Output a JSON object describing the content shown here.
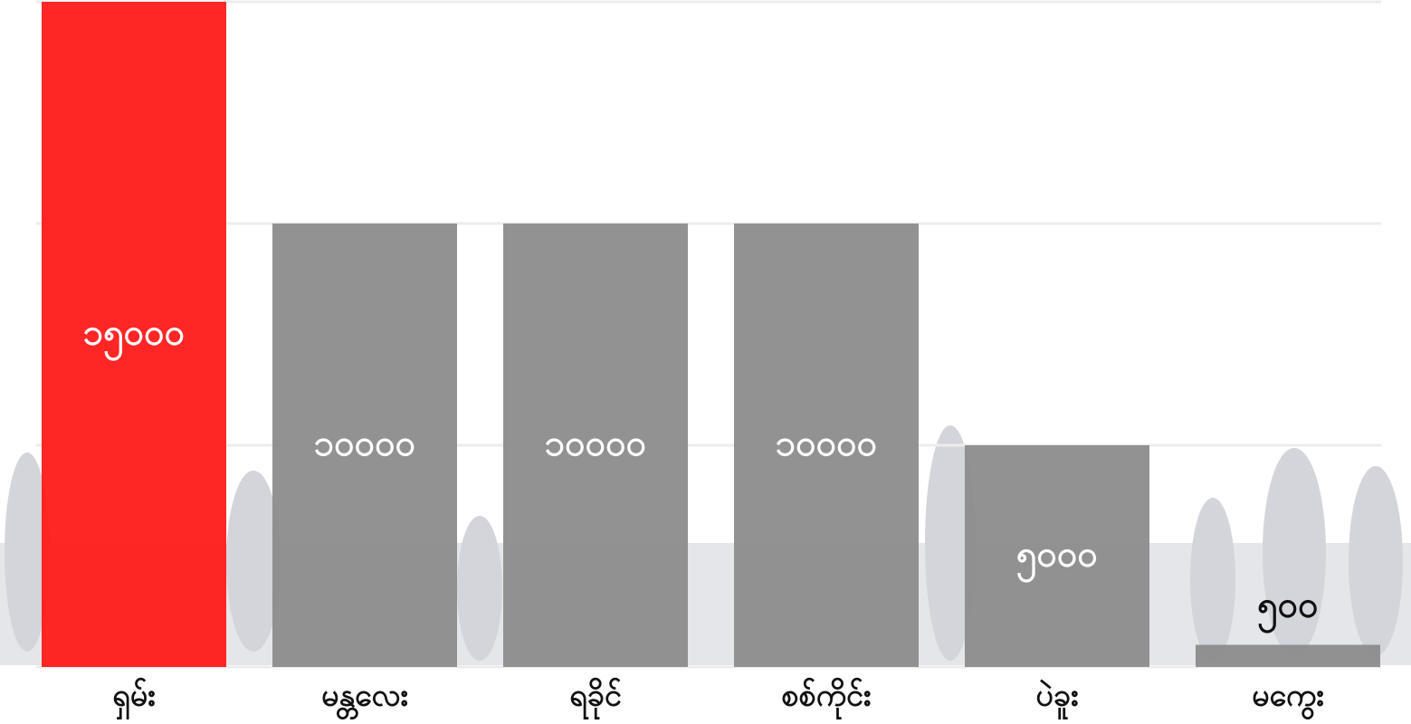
{
  "chart_data": {
    "type": "bar",
    "categories": [
      "ရှမ်း",
      "မန္တလေး",
      "ရခိုင်",
      "စစ်ကိုင်း",
      "ပဲခူး",
      "မကွေး"
    ],
    "values": [
      15000,
      10000,
      10000,
      10000,
      5000,
      500
    ],
    "value_labels": [
      "၁၅၀၀၀",
      "၁၀၀၀၀",
      "၁၀၀၀၀",
      "၁၀၀၀၀",
      "၅၀၀၀",
      "၅၀၀"
    ],
    "colors": [
      "#ff1a1a",
      "#8c8c8c",
      "#8c8c8c",
      "#8c8c8c",
      "#8c8c8c",
      "#8c8c8c"
    ],
    "ylim": [
      0,
      15000
    ],
    "yticks": [
      0,
      5000,
      10000,
      15000
    ],
    "grid": true
  }
}
